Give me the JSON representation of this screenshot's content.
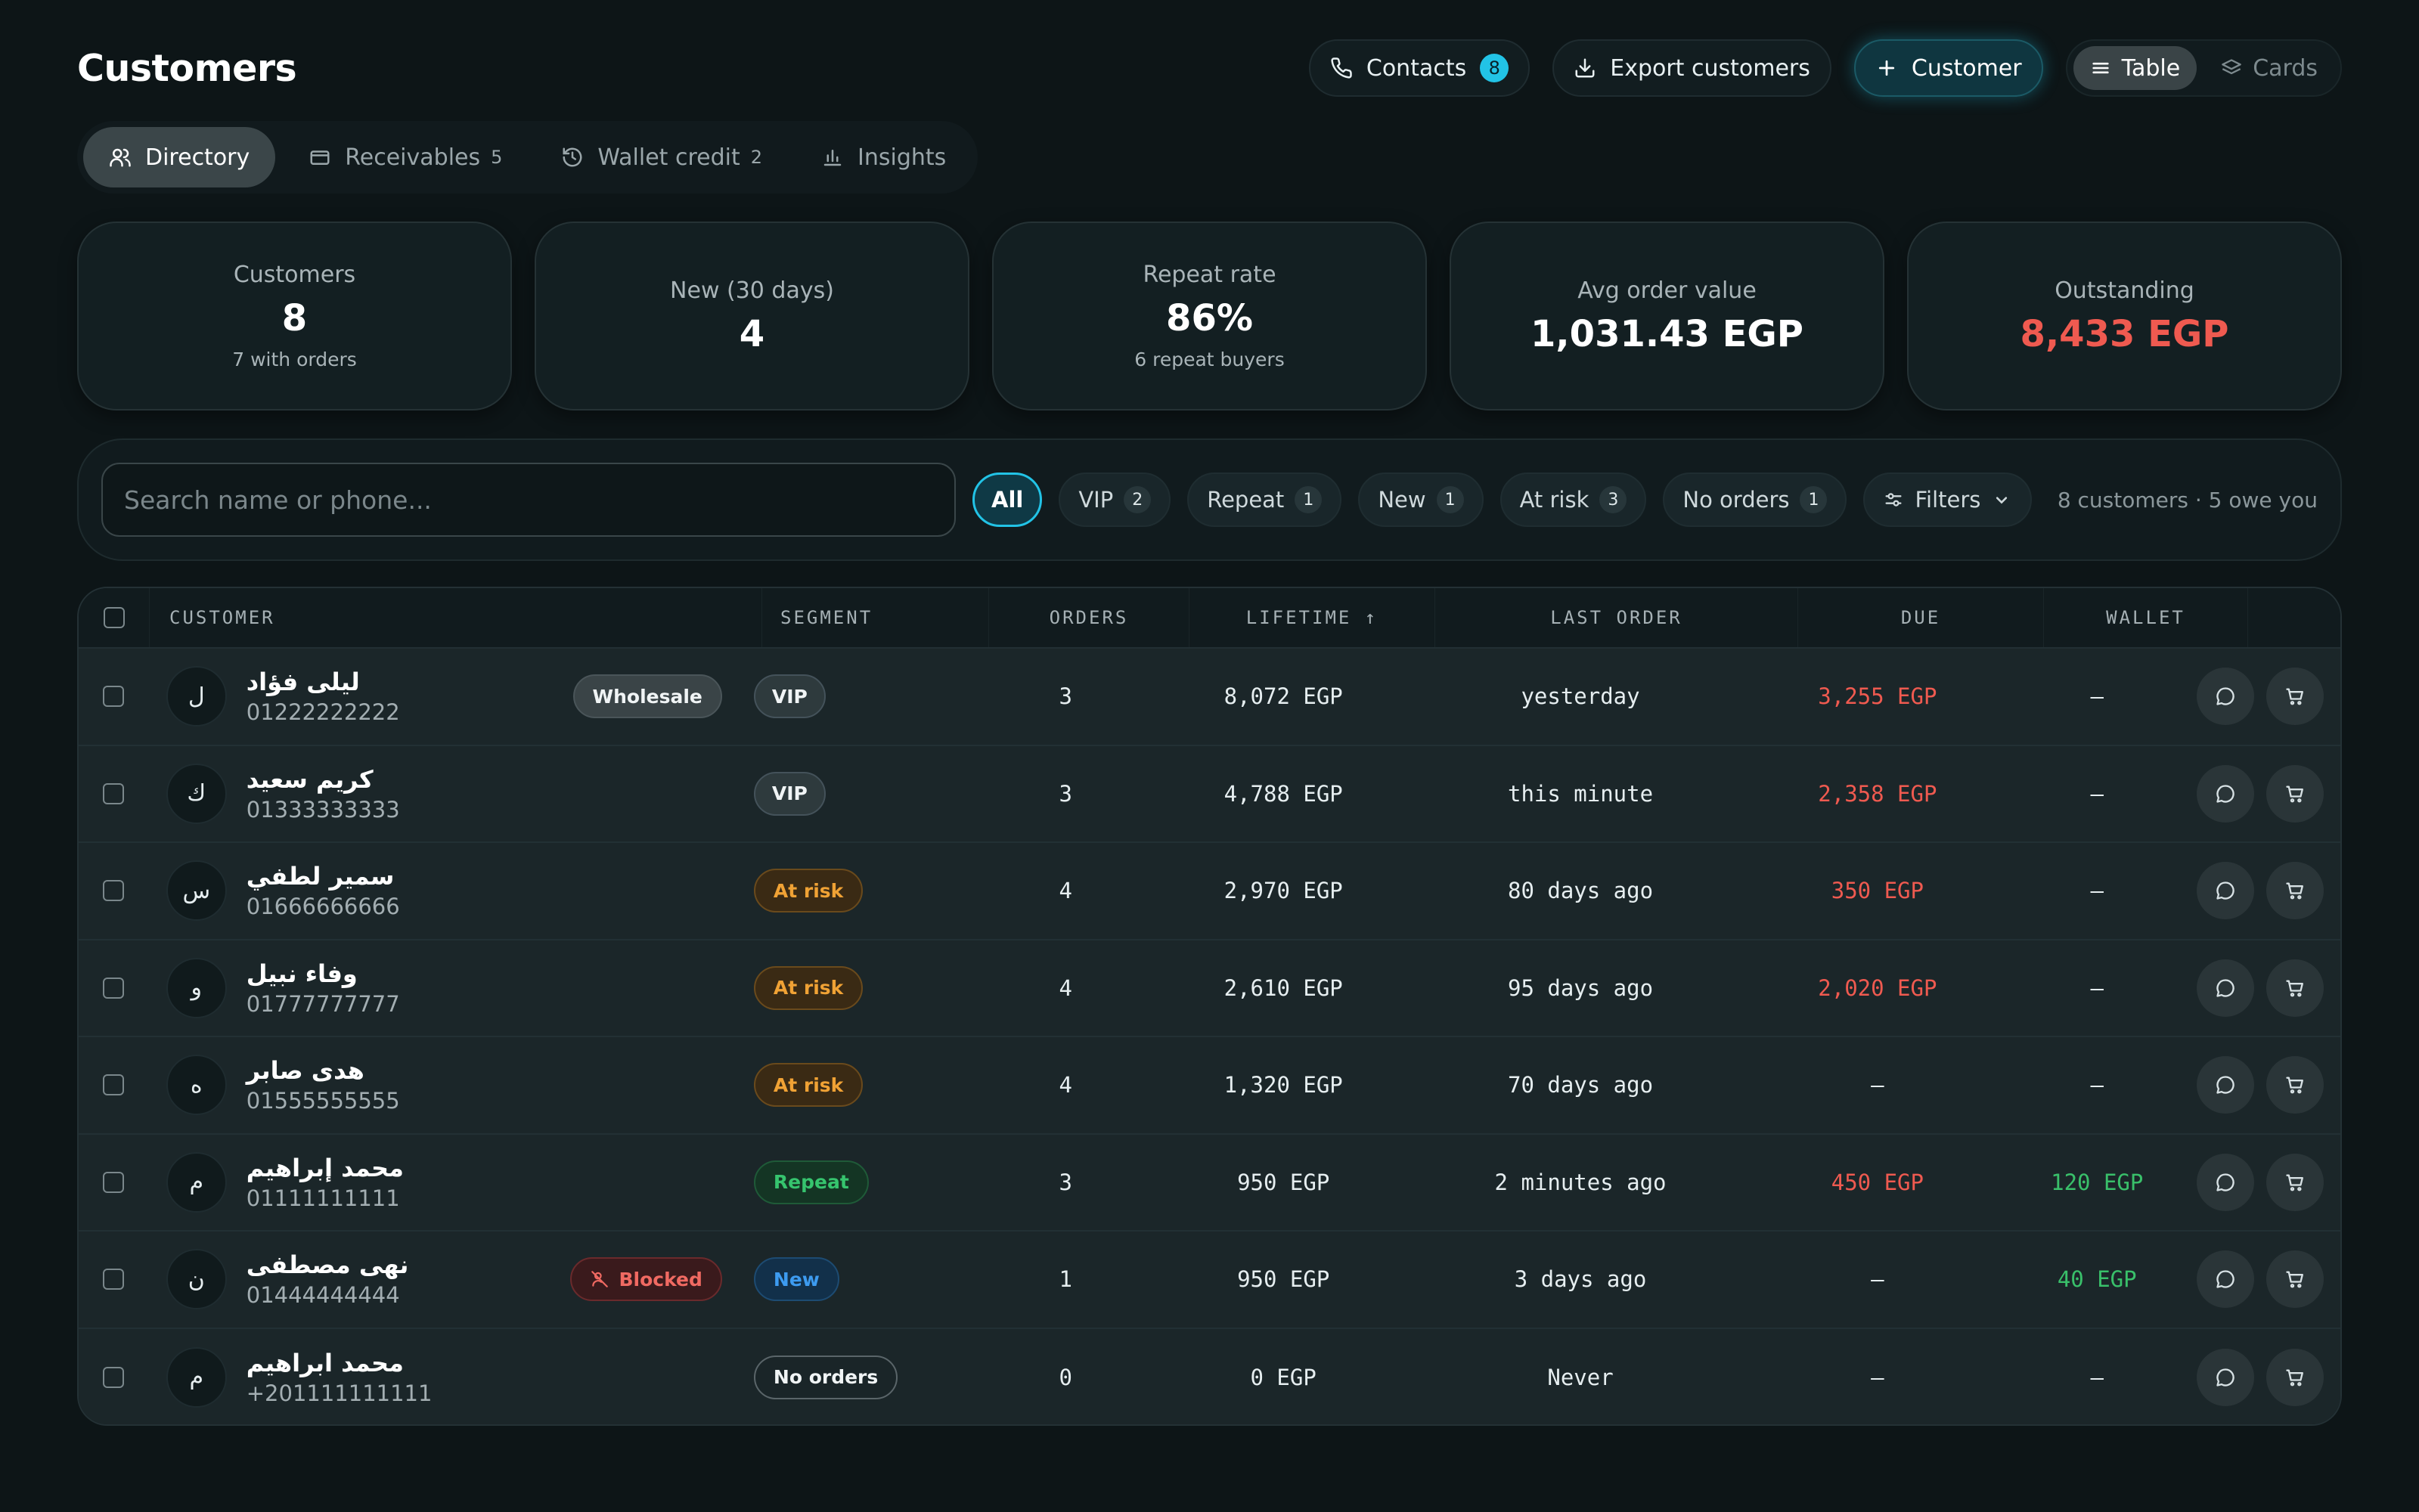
{
  "header": {
    "title": "Customers",
    "contacts_label": "Contacts",
    "contacts_count": "8",
    "export_label": "Export customers",
    "add_customer_label": "Customer",
    "view_table_label": "Table",
    "view_cards_label": "Cards"
  },
  "tabs": [
    {
      "label": "Directory",
      "count": ""
    },
    {
      "label": "Receivables",
      "count": "5"
    },
    {
      "label": "Wallet credit",
      "count": "2"
    },
    {
      "label": "Insights",
      "count": ""
    }
  ],
  "stats": [
    {
      "label": "Customers",
      "value": "8",
      "sub": "7 with orders"
    },
    {
      "label": "New (30 days)",
      "value": "4",
      "sub": ""
    },
    {
      "label": "Repeat rate",
      "value": "86%",
      "sub": "6 repeat buyers"
    },
    {
      "label": "Avg order value",
      "value": "1,031.43 EGP",
      "sub": ""
    },
    {
      "label": "Outstanding",
      "value": "8,433 EGP",
      "sub": ""
    }
  ],
  "filters": {
    "search_placeholder": "Search name or phone...",
    "chips": [
      {
        "label": "All",
        "count": ""
      },
      {
        "label": "VIP",
        "count": "2"
      },
      {
        "label": "Repeat",
        "count": "1"
      },
      {
        "label": "New",
        "count": "1"
      },
      {
        "label": "At risk",
        "count": "3"
      },
      {
        "label": "No orders",
        "count": "1"
      }
    ],
    "filters_label": "Filters",
    "summary": "8 customers · 5 owe you"
  },
  "table": {
    "columns": [
      "Customer",
      "Segment",
      "Orders",
      "Lifetime ↑",
      "Last order",
      "Due",
      "Wallet"
    ],
    "rows": [
      {
        "initial": "ل",
        "name": "ليلى فؤاد",
        "phone": "01222222222",
        "tag": "Wholesale",
        "segment": "VIP",
        "orders": "3",
        "lifetime": "8,072 EGP",
        "last_order": "yesterday",
        "due": "3,255 EGP",
        "wallet": "–"
      },
      {
        "initial": "ك",
        "name": "كريم سعيد",
        "phone": "01333333333",
        "tag": "",
        "segment": "VIP",
        "orders": "3",
        "lifetime": "4,788 EGP",
        "last_order": "this minute",
        "due": "2,358 EGP",
        "wallet": "–"
      },
      {
        "initial": "س",
        "name": "سمير لطفي",
        "phone": "01666666666",
        "tag": "",
        "segment": "At risk",
        "orders": "4",
        "lifetime": "2,970 EGP",
        "last_order": "80 days ago",
        "due": "350 EGP",
        "wallet": "–"
      },
      {
        "initial": "و",
        "name": "وفاء نبيل",
        "phone": "01777777777",
        "tag": "",
        "segment": "At risk",
        "orders": "4",
        "lifetime": "2,610 EGP",
        "last_order": "95 days ago",
        "due": "2,020 EGP",
        "wallet": "–"
      },
      {
        "initial": "ه",
        "name": "هدى صابر",
        "phone": "01555555555",
        "tag": "",
        "segment": "At risk",
        "orders": "4",
        "lifetime": "1,320 EGP",
        "last_order": "70 days ago",
        "due": "–",
        "wallet": "–"
      },
      {
        "initial": "م",
        "name": "محمد إبراهيم",
        "phone": "01111111111",
        "tag": "",
        "segment": "Repeat",
        "orders": "3",
        "lifetime": "950 EGP",
        "last_order": "2 minutes ago",
        "due": "450 EGP",
        "wallet": "120 EGP"
      },
      {
        "initial": "ن",
        "name": "نهى مصطفى",
        "phone": "01444444444",
        "tag": "Blocked",
        "segment": "New",
        "orders": "1",
        "lifetime": "950 EGP",
        "last_order": "3 days ago",
        "due": "–",
        "wallet": "40 EGP"
      },
      {
        "initial": "م",
        "name": "محمد ابراهيم",
        "phone": "+201111111111",
        "tag": "",
        "segment": "No orders",
        "orders": "0",
        "lifetime": "0 EGP",
        "last_order": "Never",
        "due": "–",
        "wallet": "–"
      }
    ]
  },
  "icons": {
    "contacts": "phone-icon",
    "export": "download-icon",
    "add": "plus-icon",
    "table_view": "list-icon",
    "cards_view": "layers-icon",
    "directory": "users-icon",
    "receivables": "wallet-icon",
    "wallet_credit": "history-icon",
    "insights": "bar-chart-icon",
    "filters": "sliders-icon",
    "row_message": "message-icon",
    "row_cart": "cart-icon"
  },
  "colors": {
    "accent": "#22c3e6",
    "danger": "#ef5a50",
    "success": "#39c06a",
    "warning": "#f0a235",
    "info": "#3d9bf0"
  }
}
